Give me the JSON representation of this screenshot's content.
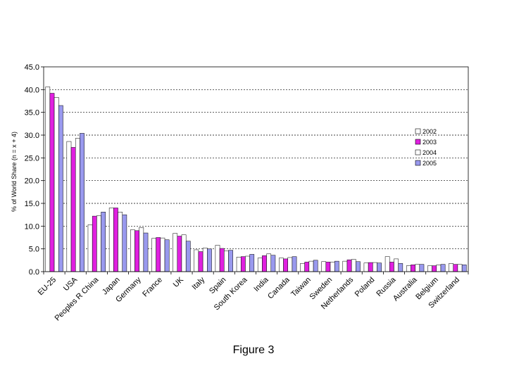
{
  "chart_data": {
    "type": "bar",
    "ylabel": "% of World Share (n = x + 4)",
    "ylim": [
      0,
      45
    ],
    "yticks": [
      "0.0",
      "5.0",
      "10.0",
      "15.0",
      "20.0",
      "25.0",
      "30.0",
      "35.0",
      "40.0",
      "45.0"
    ],
    "grid": true,
    "legend_position": "right",
    "categories": [
      "EU-25",
      "USA",
      "Peoples R China",
      "Japan",
      "Germany",
      "France",
      "UK",
      "Italy",
      "Spain",
      "South Korea",
      "India",
      "Canada",
      "Taiwan",
      "Sweden",
      "Netherlands",
      "Poland",
      "Russia",
      "Australia",
      "Belgium",
      "Switzerland"
    ],
    "series": [
      {
        "name": "2002",
        "color": "#ffffff",
        "values": [
          40.6,
          28.6,
          10.3,
          14.0,
          9.2,
          7.3,
          8.4,
          4.8,
          5.8,
          3.2,
          3.0,
          3.0,
          1.8,
          2.2,
          2.3,
          1.9,
          3.3,
          1.3,
          1.3,
          1.8
        ]
      },
      {
        "name": "2003",
        "color": "#e020e0",
        "values": [
          39.2,
          27.3,
          12.2,
          14.0,
          9.0,
          7.5,
          7.8,
          4.4,
          5.1,
          3.3,
          3.5,
          2.8,
          2.1,
          2.1,
          2.6,
          2.0,
          2.1,
          1.5,
          1.3,
          1.6
        ]
      },
      {
        "name": "2004",
        "color": "#ffffff",
        "values": [
          38.3,
          29.3,
          12.3,
          13.1,
          9.7,
          7.4,
          8.1,
          5.2,
          4.6,
          3.4,
          3.9,
          3.1,
          2.3,
          2.1,
          2.7,
          2.0,
          2.8,
          1.6,
          1.5,
          1.6
        ]
      },
      {
        "name": "2005",
        "color": "#9999ee",
        "values": [
          36.5,
          30.4,
          13.1,
          12.5,
          8.5,
          7.0,
          6.7,
          5.0,
          4.7,
          3.8,
          3.6,
          3.3,
          2.5,
          2.3,
          2.2,
          1.9,
          1.8,
          1.6,
          1.6,
          1.5
        ]
      }
    ]
  },
  "caption": "Figure 3"
}
